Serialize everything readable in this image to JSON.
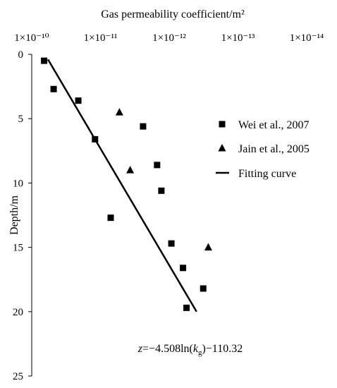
{
  "chart_data": {
    "type": "scatter",
    "title": "",
    "xlabel": "Gas permeability coefficient/m²",
    "ylabel": "Depth/m",
    "x_axis": {
      "scale": "log",
      "position": "top",
      "reversed": true,
      "range": [
        1e-10,
        1e-14
      ],
      "ticks": [
        {
          "value": 1e-10,
          "label": "1×10⁻¹⁰"
        },
        {
          "value": 1e-11,
          "label": "1×10⁻¹¹"
        },
        {
          "value": 1e-12,
          "label": "1×10⁻¹²"
        },
        {
          "value": 1e-13,
          "label": "1×10⁻¹³"
        },
        {
          "value": 1e-14,
          "label": "1×10⁻¹⁴"
        }
      ]
    },
    "y_axis": {
      "scale": "linear",
      "reversed": true,
      "range": [
        0,
        25
      ],
      "ticks": [
        {
          "value": 0,
          "label": "0"
        },
        {
          "value": 5,
          "label": "5"
        },
        {
          "value": 10,
          "label": "10"
        },
        {
          "value": 15,
          "label": "15"
        },
        {
          "value": 20,
          "label": "20"
        },
        {
          "value": 25,
          "label": "25"
        }
      ]
    },
    "grid": false,
    "legend_position": "right",
    "series": [
      {
        "name": "Wei et al., 2007",
        "marker": "square",
        "points": [
          {
            "x": 6.6e-11,
            "y": 0.5
          },
          {
            "x": 4.8e-11,
            "y": 2.7
          },
          {
            "x": 2.1e-11,
            "y": 3.6
          },
          {
            "x": 1.2e-11,
            "y": 6.6
          },
          {
            "x": 2.4e-12,
            "y": 5.6
          },
          {
            "x": 1.5e-12,
            "y": 8.6
          },
          {
            "x": 1.3e-12,
            "y": 10.6
          },
          {
            "x": 7.1e-12,
            "y": 12.7
          },
          {
            "x": 9.3e-13,
            "y": 14.7
          },
          {
            "x": 6.3e-13,
            "y": 16.6
          },
          {
            "x": 3.2e-13,
            "y": 18.2
          },
          {
            "x": 5.6e-13,
            "y": 19.7
          }
        ]
      },
      {
        "name": "Jain et al., 2005",
        "marker": "triangle",
        "points": [
          {
            "x": 5.3e-12,
            "y": 4.5
          },
          {
            "x": 3.7e-12,
            "y": 9.0
          },
          {
            "x": 2.7e-13,
            "y": 15.0
          }
        ]
      },
      {
        "name": "Fitting curve",
        "marker": "line",
        "points": [
          {
            "x": 5.8e-11,
            "y": 0.4
          },
          {
            "x": 4e-13,
            "y": 20.0
          }
        ]
      }
    ],
    "annotations": [
      {
        "text_parts": [
          {
            "t": "z",
            "style": "italic"
          },
          {
            "t": "=−4.508ln(",
            "style": "normal"
          },
          {
            "t": "k",
            "style": "italic"
          },
          {
            "t": "g",
            "style": "sub"
          },
          {
            "t": ")−110.32",
            "style": "normal"
          }
        ]
      }
    ]
  }
}
